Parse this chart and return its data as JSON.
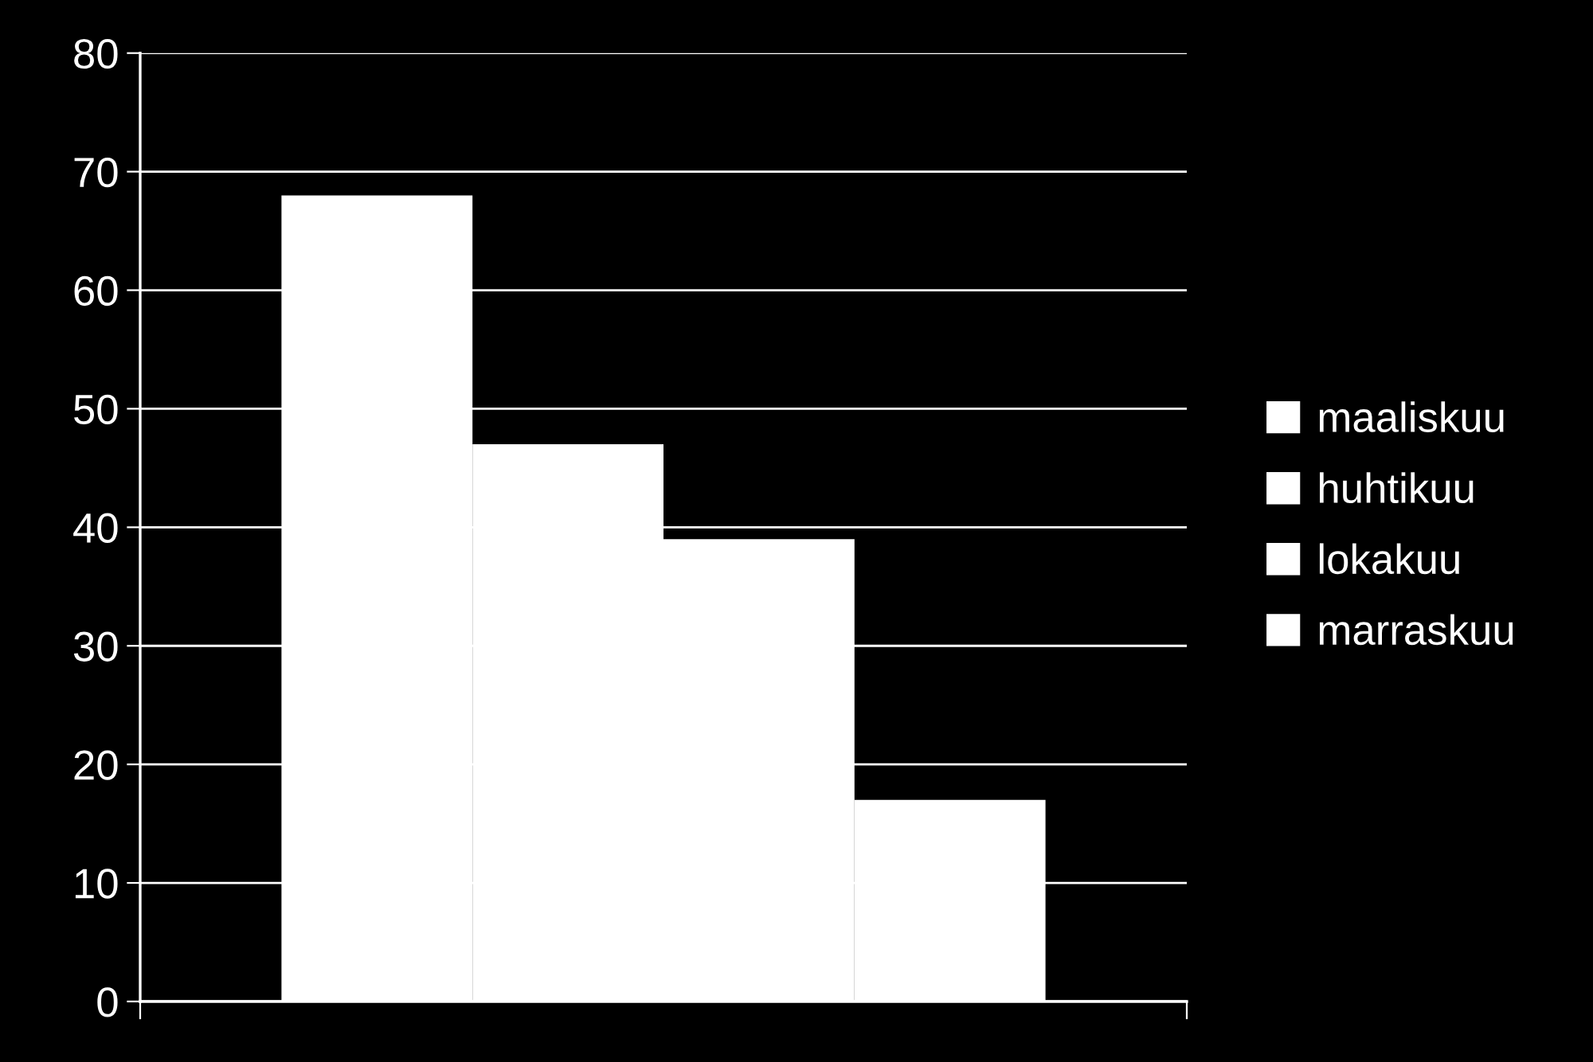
{
  "chart_data": {
    "type": "bar",
    "categories": [
      null
    ],
    "series": [
      {
        "name": "maaliskuu",
        "color": "#ffffff",
        "values": [
          68
        ]
      },
      {
        "name": "huhtikuu",
        "color": "#ffffff",
        "values": [
          47
        ]
      },
      {
        "name": "lokakuu",
        "color": "#ffffff",
        "values": [
          39
        ]
      },
      {
        "name": "marraskuu",
        "color": "#ffffff",
        "values": [
          17
        ]
      }
    ],
    "ylim": [
      0,
      80
    ],
    "yticks": [
      0,
      10,
      20,
      30,
      40,
      50,
      60,
      70,
      80
    ],
    "grid": "y",
    "legend": "right"
  }
}
